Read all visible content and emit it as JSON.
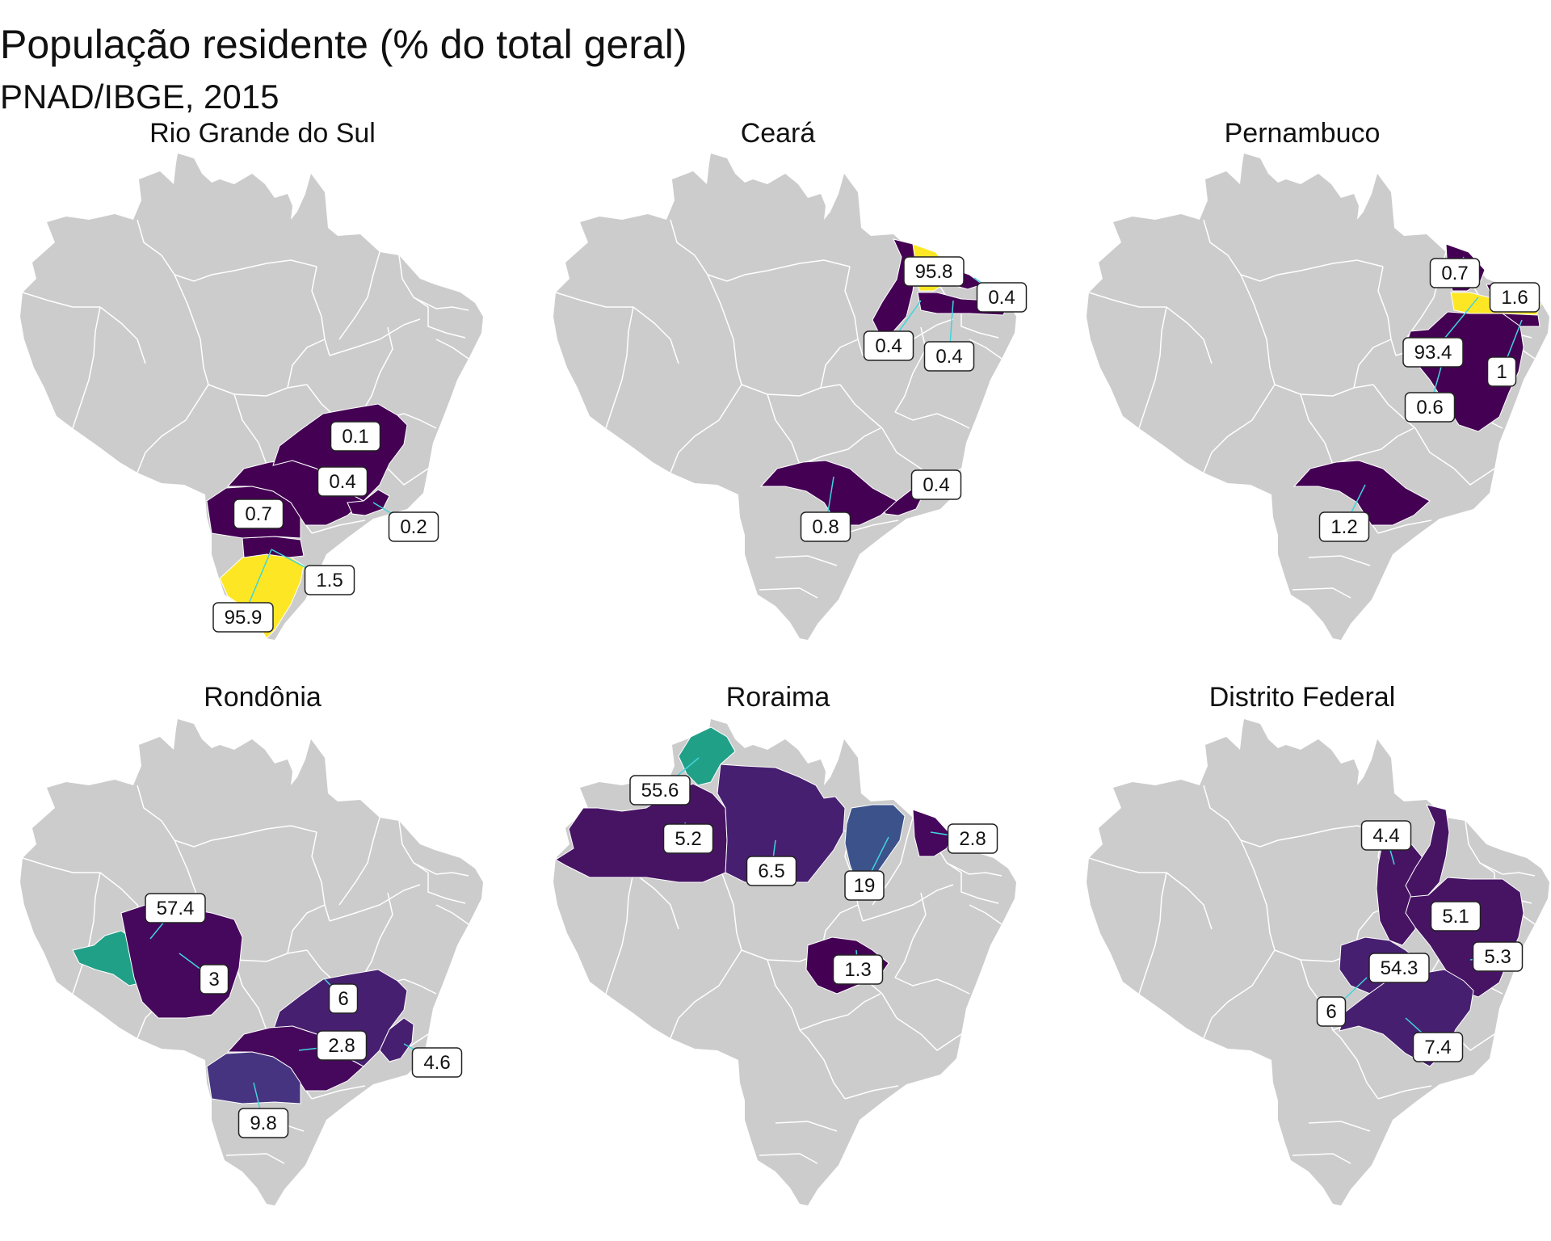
{
  "title": "População residente (% do total geral)",
  "subtitle": "PNAD/IBGE, 2015",
  "colors": {
    "base": "#cccccc",
    "border": "#ffffff",
    "leader_line": "#40d4dc",
    "scale": [
      "#440154",
      "#482173",
      "#3b528b",
      "#21918c",
      "#fde725"
    ]
  },
  "panels": [
    {
      "title": "Rio Grande do Sul",
      "labels": [
        "0.1",
        "0.4",
        "0.7",
        "0.2",
        "1.5",
        "95.9"
      ],
      "highlight_states": [
        {
          "state": "RS",
          "value": 95.9,
          "color": "#fde725"
        },
        {
          "state": "SC",
          "value": 1.5,
          "color": "#440154"
        },
        {
          "state": "PR",
          "value": 0.7,
          "color": "#440154"
        },
        {
          "state": "SP",
          "value": 0.4,
          "color": "#440154"
        },
        {
          "state": "MG",
          "value": 0.1,
          "color": "#440154"
        },
        {
          "state": "RJ",
          "value": 0.2,
          "color": "#440154"
        }
      ]
    },
    {
      "title": "Ceará",
      "labels": [
        "95.8",
        "0.4",
        "0.4",
        "0.4",
        "0.4",
        "0.8"
      ],
      "highlight_states": [
        {
          "state": "CE",
          "value": 95.8,
          "color": "#fde725"
        },
        {
          "state": "PI",
          "value": 0.4,
          "color": "#440154"
        },
        {
          "state": "RN",
          "value": 0.4,
          "color": "#440154"
        },
        {
          "state": "PE",
          "value": 0.4,
          "color": "#440154"
        },
        {
          "state": "RJ",
          "value": 0.4,
          "color": "#440154"
        },
        {
          "state": "SP",
          "value": 0.8,
          "color": "#440154"
        }
      ]
    },
    {
      "title": "Pernambuco",
      "labels": [
        "0.7",
        "1.6",
        "93.4",
        "1",
        "0.6",
        "1.2"
      ],
      "highlight_states": [
        {
          "state": "PE",
          "value": 93.4,
          "color": "#fde725"
        },
        {
          "state": "CE",
          "value": 0.7,
          "color": "#440154"
        },
        {
          "state": "PB",
          "value": 1.6,
          "color": "#440154"
        },
        {
          "state": "AL",
          "value": 1,
          "color": "#440154"
        },
        {
          "state": "BA",
          "value": 0.6,
          "color": "#440154"
        },
        {
          "state": "SP",
          "value": 1.2,
          "color": "#440154"
        }
      ]
    },
    {
      "title": "Rondônia",
      "labels": [
        "57.4",
        "3",
        "6",
        "2.8",
        "4.6",
        "9.8"
      ],
      "highlight_states": [
        {
          "state": "RO",
          "value": 57.4,
          "color": "#21a088"
        },
        {
          "state": "MT",
          "value": 3,
          "color": "#46085c"
        },
        {
          "state": "MG",
          "value": 6,
          "color": "#471f70"
        },
        {
          "state": "SP",
          "value": 2.8,
          "color": "#46085c"
        },
        {
          "state": "ES",
          "value": 4.6,
          "color": "#471f70"
        },
        {
          "state": "PR",
          "value": 9.8,
          "color": "#463480"
        }
      ]
    },
    {
      "title": "Roraima",
      "labels": [
        "55.6",
        "5.2",
        "6.5",
        "19",
        "2.8",
        "1.3"
      ],
      "highlight_states": [
        {
          "state": "RR",
          "value": 55.6,
          "color": "#21a088"
        },
        {
          "state": "AM",
          "value": 5.2,
          "color": "#471464"
        },
        {
          "state": "PA",
          "value": 6.5,
          "color": "#471f70"
        },
        {
          "state": "MA",
          "value": 19,
          "color": "#3b528b"
        },
        {
          "state": "CE",
          "value": 2.8,
          "color": "#46085c"
        },
        {
          "state": "GO",
          "value": 1.3,
          "color": "#440154"
        }
      ]
    },
    {
      "title": "Distrito Federal",
      "labels": [
        "4.4",
        "5.1",
        "54.3",
        "5.3",
        "6",
        "7.4"
      ],
      "highlight_states": [
        {
          "state": "DF",
          "value": 54.3,
          "color": "#21a088"
        },
        {
          "state": "TO",
          "value": 4.4,
          "color": "#471464"
        },
        {
          "state": "PI",
          "value": 5.1,
          "color": "#471464"
        },
        {
          "state": "BA",
          "value": 5.3,
          "color": "#471464"
        },
        {
          "state": "GO",
          "value": 6,
          "color": "#471f70"
        },
        {
          "state": "MG",
          "value": 7.4,
          "color": "#471f70"
        }
      ]
    }
  ]
}
